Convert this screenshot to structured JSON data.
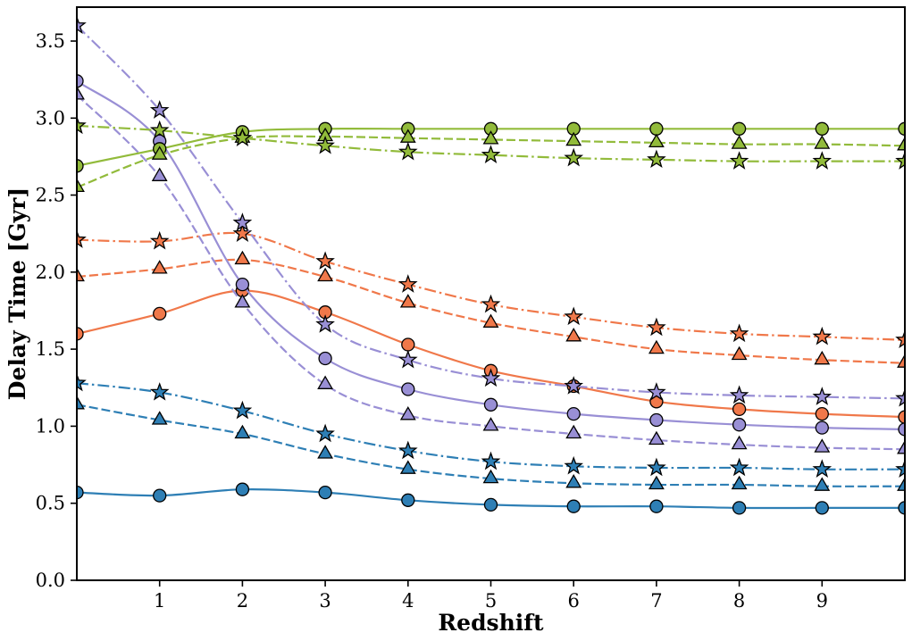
{
  "chart_data": {
    "type": "line",
    "title": "",
    "xlabel": "Redshift",
    "ylabel": "Delay Time [Gyr]",
    "xlim": [
      0,
      10
    ],
    "ylim": [
      0,
      3.72
    ],
    "xticks": [
      1,
      2,
      3,
      4,
      5,
      6,
      7,
      8,
      9
    ],
    "yticks": [
      0.0,
      0.5,
      1.0,
      1.5,
      2.0,
      2.5,
      3.0,
      3.5
    ],
    "grid": false,
    "legend": "none",
    "x": [
      0,
      1,
      2,
      3,
      4,
      5,
      6,
      7,
      8,
      9,
      10
    ],
    "series": [
      {
        "name": "blue-solid-circles",
        "color": "#2e7fb5",
        "linestyle": "solid",
        "marker": "circle",
        "values": [
          0.57,
          0.55,
          0.59,
          0.57,
          0.52,
          0.49,
          0.48,
          0.48,
          0.47,
          0.47,
          0.47
        ]
      },
      {
        "name": "blue-dashed-triangles",
        "color": "#2e7fb5",
        "linestyle": "dashed",
        "marker": "triangle",
        "values": [
          1.14,
          1.04,
          0.95,
          0.82,
          0.72,
          0.66,
          0.63,
          0.62,
          0.62,
          0.61,
          0.61
        ]
      },
      {
        "name": "blue-dashdot-stars",
        "color": "#2e7fb5",
        "linestyle": "dashdot",
        "marker": "star",
        "values": [
          1.28,
          1.22,
          1.1,
          0.95,
          0.84,
          0.77,
          0.74,
          0.73,
          0.73,
          0.72,
          0.72
        ]
      },
      {
        "name": "orange-solid-circles",
        "color": "#f0784a",
        "linestyle": "solid",
        "marker": "circle",
        "values": [
          1.6,
          1.73,
          1.88,
          1.74,
          1.53,
          1.36,
          1.26,
          1.16,
          1.11,
          1.08,
          1.06
        ]
      },
      {
        "name": "orange-dashed-triangles",
        "color": "#f0784a",
        "linestyle": "dashed",
        "marker": "triangle",
        "values": [
          1.97,
          2.02,
          2.08,
          1.97,
          1.8,
          1.67,
          1.58,
          1.5,
          1.46,
          1.43,
          1.41
        ]
      },
      {
        "name": "orange-dashdot-stars",
        "color": "#f0784a",
        "linestyle": "dashdot",
        "marker": "star",
        "values": [
          2.21,
          2.2,
          2.25,
          2.07,
          1.92,
          1.79,
          1.71,
          1.64,
          1.6,
          1.58,
          1.56
        ]
      },
      {
        "name": "purple-solid-circles",
        "color": "#998fd5",
        "linestyle": "solid",
        "marker": "circle",
        "values": [
          3.24,
          2.85,
          1.92,
          1.44,
          1.24,
          1.14,
          1.08,
          1.04,
          1.01,
          0.99,
          0.98
        ]
      },
      {
        "name": "purple-dashed-triangles",
        "color": "#998fd5",
        "linestyle": "dashed",
        "marker": "triangle",
        "values": [
          3.15,
          2.62,
          1.8,
          1.27,
          1.07,
          1.0,
          0.95,
          0.91,
          0.88,
          0.86,
          0.85
        ]
      },
      {
        "name": "purple-dashdot-stars",
        "color": "#998fd5",
        "linestyle": "dashdot",
        "marker": "star",
        "values": [
          3.6,
          3.05,
          2.32,
          1.66,
          1.43,
          1.31,
          1.26,
          1.22,
          1.2,
          1.19,
          1.18
        ]
      },
      {
        "name": "green-solid-circles",
        "color": "#92bb3b",
        "linestyle": "solid",
        "marker": "circle",
        "values": [
          2.69,
          2.8,
          2.91,
          2.93,
          2.93,
          2.93,
          2.93,
          2.93,
          2.93,
          2.93,
          2.93
        ]
      },
      {
        "name": "green-dashed-triangles",
        "color": "#92bb3b",
        "linestyle": "dashed",
        "marker": "triangle",
        "values": [
          2.55,
          2.76,
          2.87,
          2.88,
          2.87,
          2.86,
          2.85,
          2.84,
          2.83,
          2.83,
          2.82
        ]
      },
      {
        "name": "green-dashdot-stars",
        "color": "#92bb3b",
        "linestyle": "dashdot",
        "marker": "star",
        "values": [
          2.95,
          2.92,
          2.87,
          2.82,
          2.78,
          2.76,
          2.74,
          2.73,
          2.72,
          2.72,
          2.72
        ]
      }
    ],
    "style": {
      "marker_edge_color": "#000000",
      "spine_color": "#000000",
      "background": "#ffffff"
    }
  }
}
